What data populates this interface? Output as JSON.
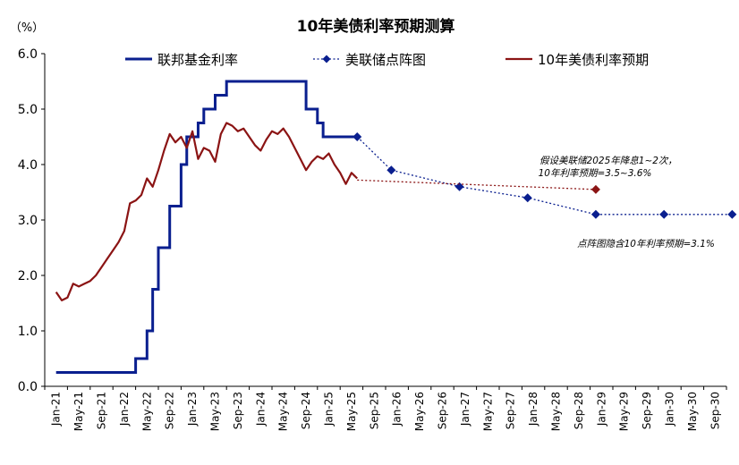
{
  "chart_data": {
    "type": "line",
    "title": "10年美债利率预期测算",
    "ylabel": "（%）",
    "xlabel": "",
    "ylim": [
      0,
      6
    ],
    "yticks": [
      "0.0",
      "1.0",
      "2.0",
      "3.0",
      "4.0",
      "5.0",
      "6.0"
    ],
    "x_tick_labels": [
      "Jan-21",
      "May-21",
      "Sep-21",
      "Jan-22",
      "May-22",
      "Sep-22",
      "Jan-23",
      "May-23",
      "Sep-23",
      "Jan-24",
      "May-24",
      "Sep-24",
      "Jan-25",
      "May-25",
      "Sep-25",
      "Jan-26",
      "May-26",
      "Sep-26",
      "Jan-27",
      "May-27",
      "Sep-27",
      "Jan-28",
      "May-28",
      "Sep-28",
      "Jan-29",
      "May-29",
      "Sep-29",
      "Jan-30",
      "May-30",
      "Sep-30"
    ],
    "legend_position": "top",
    "grid": false,
    "series": [
      {
        "name": "联邦基金利率",
        "style": "step",
        "color": "#0a1f8f",
        "points": [
          [
            "2021-01",
            0.25
          ],
          [
            "2022-03",
            0.5
          ],
          [
            "2022-05",
            1.0
          ],
          [
            "2022-06",
            1.75
          ],
          [
            "2022-07",
            2.5
          ],
          [
            "2022-09",
            3.25
          ],
          [
            "2022-11",
            4.0
          ],
          [
            "2022-12",
            4.5
          ],
          [
            "2023-02",
            4.75
          ],
          [
            "2023-03",
            5.0
          ],
          [
            "2023-05",
            5.25
          ],
          [
            "2023-07",
            5.5
          ],
          [
            "2024-09",
            5.0
          ],
          [
            "2024-11",
            4.75
          ],
          [
            "2024-12",
            4.5
          ],
          [
            "2025-06",
            4.5
          ]
        ]
      },
      {
        "name": "美联储点阵图",
        "style": "dotted-diamond",
        "color": "#0a1f8f",
        "points": [
          [
            "2025-06",
            4.5
          ],
          [
            "2025-12",
            3.9
          ],
          [
            "2026-12",
            3.6
          ],
          [
            "2027-12",
            3.4
          ],
          [
            "2028-12",
            3.1
          ],
          [
            "2029-12",
            3.1
          ],
          [
            "2030-12",
            3.1
          ]
        ]
      },
      {
        "name": "10年美债利率预期",
        "style": "line",
        "color": "#8b1414",
        "points": [
          [
            "2021-01",
            1.7
          ],
          [
            "2021-02",
            1.55
          ],
          [
            "2021-03",
            1.6
          ],
          [
            "2021-04",
            1.85
          ],
          [
            "2021-05",
            1.8
          ],
          [
            "2021-06",
            1.85
          ],
          [
            "2021-07",
            1.9
          ],
          [
            "2021-08",
            2.0
          ],
          [
            "2021-09",
            2.15
          ],
          [
            "2021-10",
            2.3
          ],
          [
            "2021-11",
            2.45
          ],
          [
            "2021-12",
            2.6
          ],
          [
            "2022-01",
            2.8
          ],
          [
            "2022-02",
            3.3
          ],
          [
            "2022-03",
            3.35
          ],
          [
            "2022-04",
            3.45
          ],
          [
            "2022-05",
            3.75
          ],
          [
            "2022-06",
            3.6
          ],
          [
            "2022-07",
            3.9
          ],
          [
            "2022-08",
            4.25
          ],
          [
            "2022-09",
            4.55
          ],
          [
            "2022-10",
            4.4
          ],
          [
            "2022-11",
            4.5
          ],
          [
            "2022-12",
            4.3
          ],
          [
            "2023-01",
            4.6
          ],
          [
            "2023-02",
            4.1
          ],
          [
            "2023-03",
            4.3
          ],
          [
            "2023-04",
            4.25
          ],
          [
            "2023-05",
            4.05
          ],
          [
            "2023-06",
            4.55
          ],
          [
            "2023-07",
            4.75
          ],
          [
            "2023-08",
            4.7
          ],
          [
            "2023-09",
            4.6
          ],
          [
            "2023-10",
            4.65
          ],
          [
            "2023-11",
            4.5
          ],
          [
            "2023-12",
            4.35
          ],
          [
            "2024-01",
            4.25
          ],
          [
            "2024-02",
            4.45
          ],
          [
            "2024-03",
            4.6
          ],
          [
            "2024-04",
            4.55
          ],
          [
            "2024-05",
            4.65
          ],
          [
            "2024-06",
            4.5
          ],
          [
            "2024-07",
            4.3
          ],
          [
            "2024-08",
            4.1
          ],
          [
            "2024-09",
            3.9
          ],
          [
            "2024-10",
            4.05
          ],
          [
            "2024-11",
            4.15
          ],
          [
            "2024-12",
            4.1
          ],
          [
            "2025-01",
            4.2
          ],
          [
            "2025-02",
            4.0
          ],
          [
            "2025-03",
            3.85
          ],
          [
            "2025-04",
            3.65
          ],
          [
            "2025-05",
            3.85
          ],
          [
            "2025-06",
            3.75
          ]
        ]
      },
      {
        "name": "",
        "style": "projection",
        "color": "#8b1414",
        "points": [
          [
            "2025-06",
            3.72
          ],
          [
            "2028-12",
            3.55
          ]
        ]
      }
    ],
    "annotations": [
      {
        "line1": "假设美联储2025年降息1~2次，",
        "line2": "10年利率预期=3.5~3.6%",
        "at": [
          "2028-12",
          3.55
        ]
      },
      {
        "line1": "点阵图隐含10年利率预期=3.1%",
        "at": [
          "2028-12",
          3.1
        ]
      }
    ]
  }
}
